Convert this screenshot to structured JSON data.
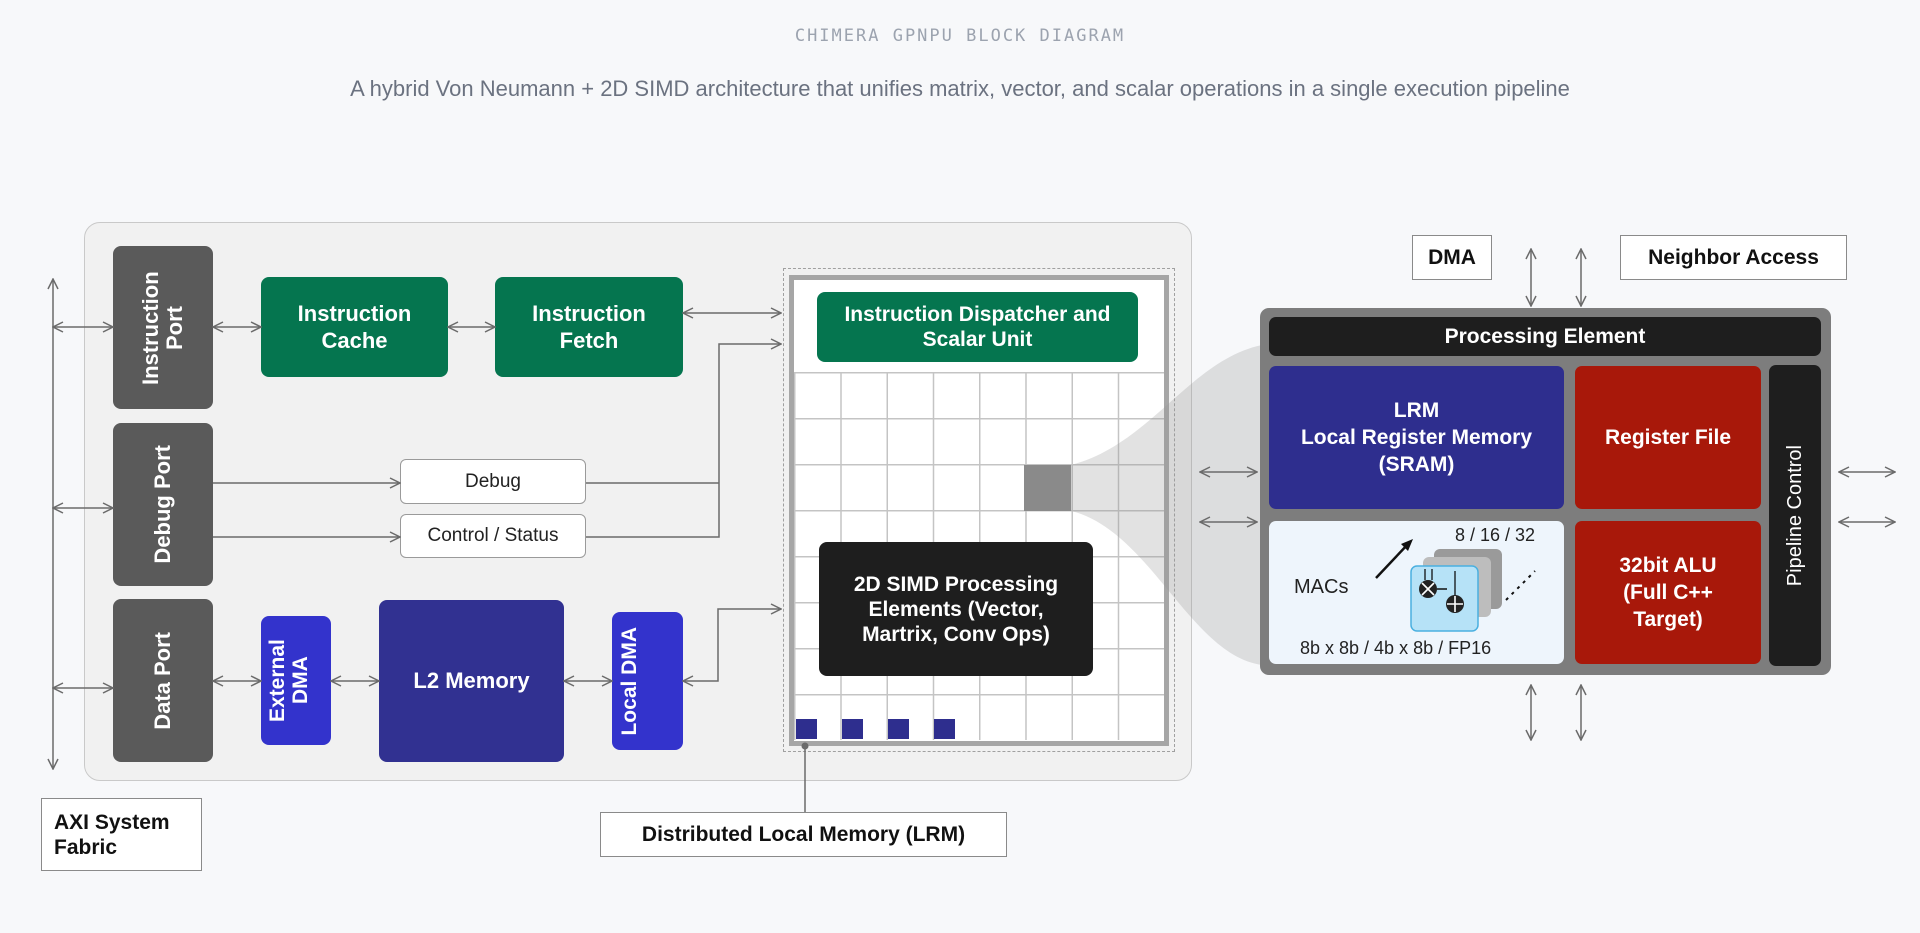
{
  "header": {
    "title": "CHIMERA GPNPU BLOCK DIAGRAM",
    "subtitle": "A hybrid Von Neumann + 2D SIMD architecture that unifies matrix, vector, and scalar operations in a single execution pipeline"
  },
  "left": {
    "instruction_port": "Instruction Port",
    "debug_port": "Debug Port",
    "data_port": "Data Port",
    "instruction_cache": "Instruction Cache",
    "instruction_fetch": "Instruction Fetch",
    "debug": "Debug",
    "control_status": "Control / Status",
    "external_dma": "External DMA",
    "l2_memory": "L2 Memory",
    "local_dma": "Local DMA",
    "axi_fabric": "AXI System Fabric"
  },
  "array": {
    "dispatcher": "Instruction Dispatcher and Scalar Unit",
    "simd": "2D SIMD Processing Elements (Vector, Martrix, Conv Ops)",
    "distributed_memory": "Distributed Local Memory (LRM)"
  },
  "pe": {
    "dma": "DMA",
    "neighbor_access": "Neighbor Access",
    "title": "Processing Element",
    "lrm_line1": "LRM",
    "lrm_line2": "Local Register Memory",
    "lrm_line3": "(SRAM)",
    "register_file": "Register File",
    "pipeline_control": "Pipeline Control",
    "mac_widths": "8 / 16 / 32",
    "macs": "MACs",
    "mac_precisions": "8b x 8b / 4b x 8b / FP16",
    "alu": "32bit ALU (Full C++ Target)"
  },
  "colors": {
    "green": "#05754f",
    "port_gray": "#5a5a5a",
    "dma_blue": "#3333cc",
    "l2_navy": "#313191",
    "lrm_blue": "#2e2e8e",
    "red": "#a8180a",
    "black": "#1e1e1e"
  }
}
